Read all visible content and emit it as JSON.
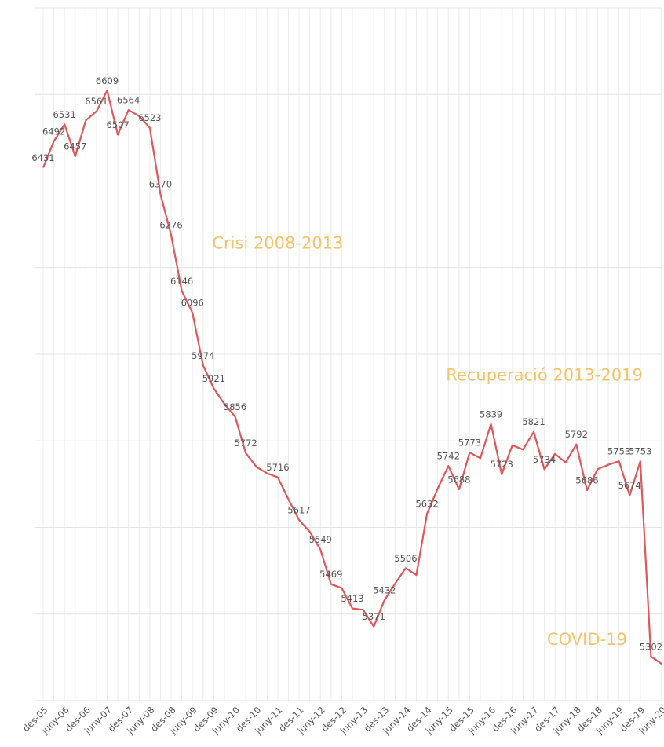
{
  "chart_data": {
    "type": "line",
    "categories": [
      "des-05",
      null,
      "juny-06",
      null,
      "des-06",
      null,
      "juny-07",
      null,
      "des-07",
      null,
      "juny-08",
      null,
      "des-08",
      null,
      "juny-09",
      null,
      "des-09",
      null,
      "juny-10",
      null,
      "des-10",
      null,
      "juny-11",
      null,
      "des-11",
      null,
      "juny-12",
      null,
      "des-12",
      null,
      "juny-13",
      null,
      "des-13",
      null,
      "juny-14",
      null,
      "des-14",
      null,
      "juny-15",
      null,
      "des-15",
      null,
      "juny-16",
      null,
      "des-16",
      null,
      "juny-17",
      null,
      "des-17",
      null,
      "juny-18",
      null,
      "des-18",
      null,
      "juny-19",
      null,
      "des-19",
      null,
      "juny-20"
    ],
    "values": [
      6431,
      6492,
      6531,
      6457,
      6540,
      6561,
      6609,
      6507,
      6564,
      6550,
      6523,
      6370,
      6276,
      6146,
      6096,
      5974,
      5921,
      5885,
      5856,
      5772,
      5740,
      5725,
      5716,
      5665,
      5617,
      5590,
      5549,
      5469,
      5460,
      5413,
      5410,
      5371,
      5432,
      5470,
      5506,
      5490,
      5632,
      5690,
      5742,
      5688,
      5773,
      5760,
      5839,
      5723,
      5790,
      5780,
      5821,
      5734,
      5770,
      5750,
      5792,
      5686,
      5735,
      5745,
      5753,
      5674,
      5753,
      5302,
      5285
    ],
    "value_labels": [
      "6431",
      "6492",
      "6531",
      "6457",
      null,
      "6561",
      "6609",
      "6507",
      "6564",
      null,
      "6523",
      "6370",
      "6276",
      "6146",
      "6096",
      "5974",
      "5921",
      null,
      "5856",
      "5772",
      null,
      null,
      "5716",
      null,
      "5617",
      null,
      "5549",
      "5469",
      null,
      "5413",
      null,
      "5371",
      "5432",
      null,
      "5506",
      null,
      "5632",
      null,
      "5742",
      "5688",
      "5773",
      null,
      "5839",
      "5723",
      null,
      null,
      "5821",
      "5734",
      null,
      null,
      "5792",
      "5686",
      null,
      null,
      "5753",
      "5674",
      "5753",
      "5302",
      null
    ],
    "color": "#e0575b",
    "ylim": [
      5200,
      6800
    ],
    "yticks": [
      5200,
      5400,
      5600,
      5800,
      6000,
      6200,
      6400,
      6600,
      6800
    ],
    "grid": true,
    "annotations": [
      {
        "text": "Crisi 2008-2013",
        "x": 22,
        "y": 6255
      },
      {
        "text": "Recuperació 2013-2019",
        "x": 47,
        "y": 5950
      },
      {
        "text": "COVID-19",
        "x": 51,
        "y": 5340
      }
    ],
    "annotation_color": "#f3c46a"
  }
}
